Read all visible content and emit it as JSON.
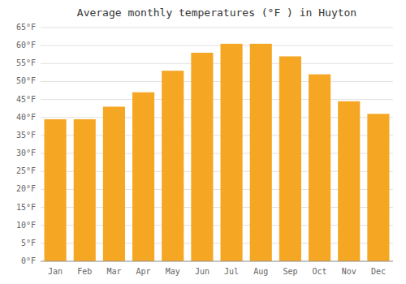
{
  "chart_data": {
    "type": "bar",
    "title": "Average monthly temperatures (°F ) in Huyton",
    "categories": [
      "Jan",
      "Feb",
      "Mar",
      "Apr",
      "May",
      "Jun",
      "Jul",
      "Aug",
      "Sep",
      "Oct",
      "Nov",
      "Dec"
    ],
    "values": [
      39.5,
      39.5,
      43.0,
      47.0,
      53.0,
      58.0,
      60.5,
      60.5,
      57.0,
      52.0,
      44.5,
      41.0
    ],
    "color": "#F5A623",
    "ylim": [
      0,
      65
    ],
    "yticks": [
      {
        "value": 0,
        "label": "0°F"
      },
      {
        "value": 5,
        "label": "5°F"
      },
      {
        "value": 10,
        "label": "10°F"
      },
      {
        "value": 15,
        "label": "15°F"
      },
      {
        "value": 20,
        "label": "20°F"
      },
      {
        "value": 25,
        "label": "25°F"
      },
      {
        "value": 30,
        "label": "30°F"
      },
      {
        "value": 35,
        "label": "35°F"
      },
      {
        "value": 40,
        "label": "40°F"
      },
      {
        "value": 45,
        "label": "45°F"
      },
      {
        "value": 50,
        "label": "50°F"
      },
      {
        "value": 55,
        "label": "55°F"
      },
      {
        "value": 60,
        "label": "60°F"
      },
      {
        "value": 65,
        "label": "65°F"
      }
    ],
    "grid": true
  }
}
